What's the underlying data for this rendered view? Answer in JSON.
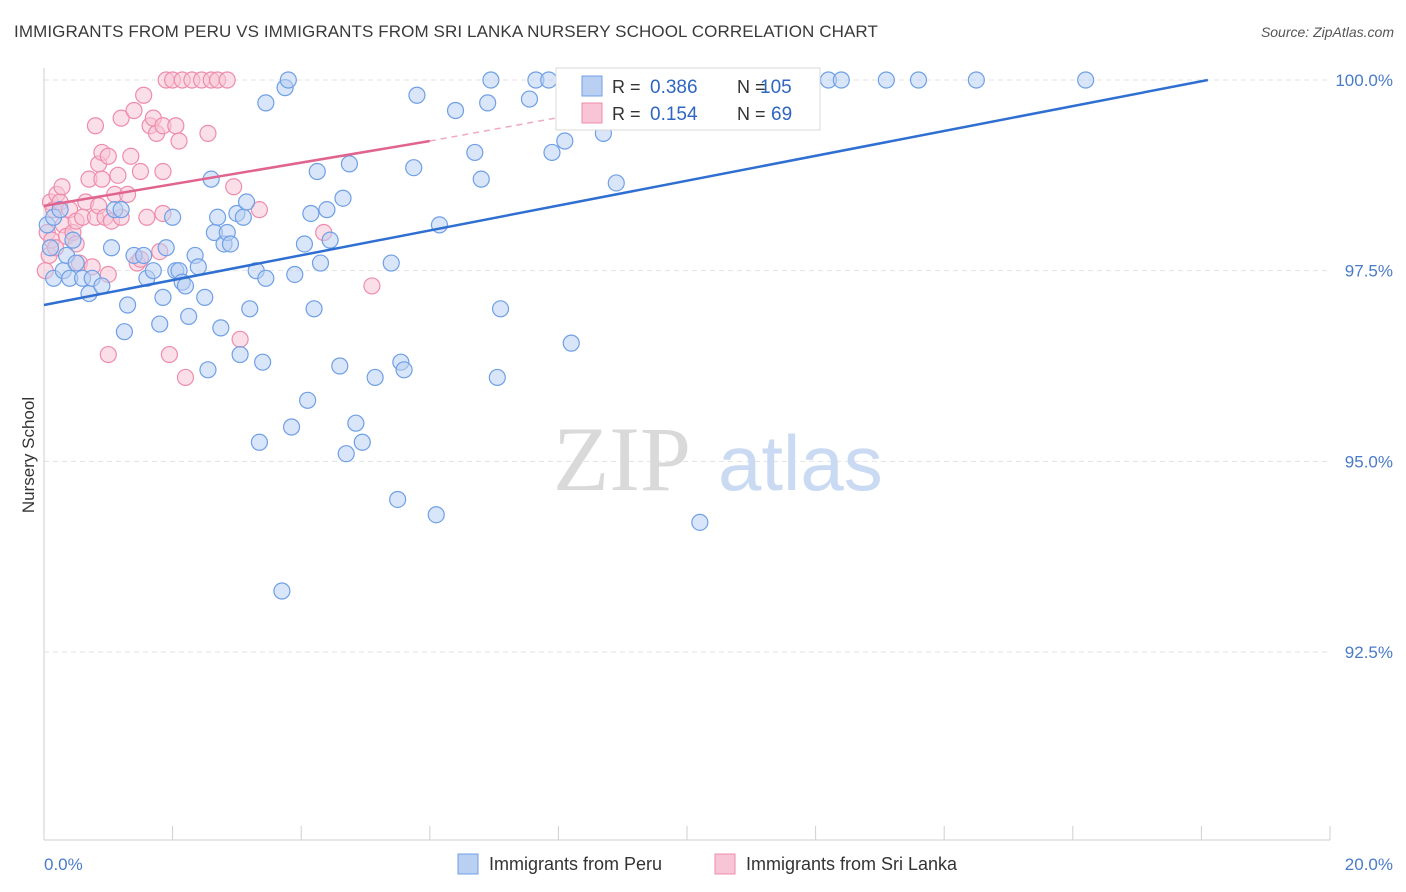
{
  "title": "IMMIGRANTS FROM PERU VS IMMIGRANTS FROM SRI LANKA NURSERY SCHOOL CORRELATION CHART",
  "source": "Source: ZipAtlas.com",
  "watermark": {
    "zip": "ZIP",
    "atlas": "atlas"
  },
  "chart_data": {
    "type": "scatter",
    "title": "IMMIGRANTS FROM PERU VS IMMIGRANTS FROM SRI LANKA NURSERY SCHOOL CORRELATION CHART",
    "xlabel": "",
    "ylabel": "Nursery School",
    "xlim": [
      0,
      20
    ],
    "ylim": [
      90.2,
      100.2
    ],
    "x_tick_labels": {
      "left": "0.0%",
      "right": "20.0%"
    },
    "y_ticks": [
      {
        "value": 100.0,
        "label": "100.0%"
      },
      {
        "value": 97.5,
        "label": "97.5%"
      },
      {
        "value": 95.0,
        "label": "95.0%"
      },
      {
        "value": 92.5,
        "label": "92.5%"
      }
    ],
    "grid": true,
    "legend_placement": "top-center",
    "series": [
      {
        "name": "Immigrants from Peru",
        "color": "#6f9fe6",
        "fill": "#b9d0f3",
        "stats": {
          "r_label": "R =",
          "r": "0.386",
          "n_label": "N =",
          "n": "105"
        },
        "trend": {
          "x": [
            0,
            18.1
          ],
          "y": [
            97.05,
            100.0
          ],
          "color": "#2f6fd1"
        },
        "points": [
          [
            0.05,
            98.1
          ],
          [
            0.1,
            97.8
          ],
          [
            0.15,
            97.4
          ],
          [
            0.15,
            98.2
          ],
          [
            0.25,
            98.3
          ],
          [
            0.3,
            97.5
          ],
          [
            0.35,
            97.7
          ],
          [
            0.4,
            97.4
          ],
          [
            0.45,
            97.9
          ],
          [
            0.5,
            97.6
          ],
          [
            0.6,
            97.4
          ],
          [
            0.7,
            97.2
          ],
          [
            0.75,
            97.4
          ],
          [
            0.9,
            97.3
          ],
          [
            1.05,
            97.8
          ],
          [
            1.1,
            98.3
          ],
          [
            1.2,
            98.3
          ],
          [
            1.25,
            96.7
          ],
          [
            1.3,
            97.05
          ],
          [
            1.4,
            97.7
          ],
          [
            1.55,
            97.7
          ],
          [
            1.6,
            97.4
          ],
          [
            1.7,
            97.5
          ],
          [
            1.8,
            96.8
          ],
          [
            1.85,
            97.15
          ],
          [
            1.9,
            97.8
          ],
          [
            2.0,
            98.2
          ],
          [
            2.05,
            97.5
          ],
          [
            2.1,
            97.5
          ],
          [
            2.15,
            97.35
          ],
          [
            2.2,
            97.3
          ],
          [
            2.25,
            96.9
          ],
          [
            2.35,
            97.7
          ],
          [
            2.4,
            97.55
          ],
          [
            2.5,
            97.15
          ],
          [
            2.55,
            96.2
          ],
          [
            2.6,
            98.7
          ],
          [
            2.65,
            98.0
          ],
          [
            2.7,
            98.2
          ],
          [
            2.75,
            96.75
          ],
          [
            2.8,
            97.85
          ],
          [
            2.85,
            98.0
          ],
          [
            2.9,
            97.85
          ],
          [
            3.0,
            98.25
          ],
          [
            3.05,
            96.4
          ],
          [
            3.1,
            98.2
          ],
          [
            3.15,
            98.4
          ],
          [
            3.2,
            97.0
          ],
          [
            3.3,
            97.5
          ],
          [
            3.35,
            95.25
          ],
          [
            3.4,
            96.3
          ],
          [
            3.45,
            97.4
          ],
          [
            3.45,
            99.7
          ],
          [
            3.7,
            93.3
          ],
          [
            3.75,
            99.9
          ],
          [
            3.8,
            100.0
          ],
          [
            3.85,
            95.45
          ],
          [
            3.9,
            97.45
          ],
          [
            4.05,
            97.85
          ],
          [
            4.1,
            95.8
          ],
          [
            4.15,
            98.25
          ],
          [
            4.2,
            97.0
          ],
          [
            4.25,
            98.8
          ],
          [
            4.3,
            97.6
          ],
          [
            4.4,
            98.3
          ],
          [
            4.45,
            97.9
          ],
          [
            4.6,
            96.25
          ],
          [
            4.65,
            98.45
          ],
          [
            4.7,
            95.1
          ],
          [
            4.75,
            98.9
          ],
          [
            4.85,
            95.5
          ],
          [
            4.95,
            95.25
          ],
          [
            5.15,
            96.1
          ],
          [
            5.4,
            97.6
          ],
          [
            5.5,
            94.5
          ],
          [
            5.55,
            96.3
          ],
          [
            5.6,
            96.2
          ],
          [
            5.75,
            98.85
          ],
          [
            5.8,
            99.8
          ],
          [
            6.1,
            94.3
          ],
          [
            6.15,
            98.1
          ],
          [
            6.4,
            99.6
          ],
          [
            6.7,
            99.05
          ],
          [
            6.8,
            98.7
          ],
          [
            6.9,
            99.7
          ],
          [
            6.95,
            100.0
          ],
          [
            7.05,
            96.1
          ],
          [
            7.1,
            97.0
          ],
          [
            7.55,
            99.75
          ],
          [
            7.65,
            100.0
          ],
          [
            7.85,
            100.0
          ],
          [
            7.9,
            99.05
          ],
          [
            8.1,
            99.2
          ],
          [
            8.2,
            96.55
          ],
          [
            8.4,
            100.0
          ],
          [
            8.7,
            99.3
          ],
          [
            8.9,
            98.65
          ],
          [
            9.6,
            100.0
          ],
          [
            10.2,
            94.2
          ],
          [
            11.4,
            100.0
          ],
          [
            12.2,
            100.0
          ],
          [
            12.4,
            100.0
          ],
          [
            13.1,
            100.0
          ],
          [
            13.6,
            100.0
          ],
          [
            14.5,
            100.0
          ],
          [
            16.2,
            100.0
          ]
        ]
      },
      {
        "name": "Immigrants from Sri Lanka",
        "color": "#ef8cab",
        "fill": "#f8c5d6",
        "stats": {
          "r_label": "R =",
          "r": "0.154",
          "n_label": "N =",
          "n": "69"
        },
        "trend": {
          "x": [
            0,
            6.0
          ],
          "y": [
            98.35,
            99.2
          ],
          "color": "#e0648e"
        },
        "trend_extension": {
          "x": [
            6.0,
            8.6
          ],
          "y": [
            99.2,
            99.6
          ]
        },
        "points": [
          [
            0.02,
            97.5
          ],
          [
            0.05,
            98.0
          ],
          [
            0.08,
            97.7
          ],
          [
            0.1,
            98.4
          ],
          [
            0.12,
            97.9
          ],
          [
            0.15,
            98.3
          ],
          [
            0.18,
            97.8
          ],
          [
            0.2,
            98.5
          ],
          [
            0.25,
            98.4
          ],
          [
            0.28,
            98.6
          ],
          [
            0.3,
            98.1
          ],
          [
            0.35,
            97.95
          ],
          [
            0.4,
            98.3
          ],
          [
            0.45,
            98.0
          ],
          [
            0.5,
            97.85
          ],
          [
            0.5,
            98.15
          ],
          [
            0.55,
            97.6
          ],
          [
            0.6,
            98.2
          ],
          [
            0.65,
            98.4
          ],
          [
            0.7,
            98.7
          ],
          [
            0.75,
            97.55
          ],
          [
            0.8,
            99.4
          ],
          [
            0.8,
            98.2
          ],
          [
            0.85,
            98.9
          ],
          [
            0.85,
            98.35
          ],
          [
            0.9,
            99.05
          ],
          [
            0.9,
            98.7
          ],
          [
            0.95,
            98.2
          ],
          [
            1.0,
            97.45
          ],
          [
            1.0,
            96.4
          ],
          [
            1.0,
            99.0
          ],
          [
            1.05,
            98.15
          ],
          [
            1.1,
            98.5
          ],
          [
            1.15,
            98.75
          ],
          [
            1.2,
            99.5
          ],
          [
            1.2,
            98.2
          ],
          [
            1.3,
            98.5
          ],
          [
            1.35,
            99.0
          ],
          [
            1.4,
            99.6
          ],
          [
            1.45,
            97.6
          ],
          [
            1.5,
            97.65
          ],
          [
            1.5,
            98.8
          ],
          [
            1.55,
            99.8
          ],
          [
            1.6,
            98.2
          ],
          [
            1.65,
            99.4
          ],
          [
            1.7,
            99.5
          ],
          [
            1.75,
            99.3
          ],
          [
            1.8,
            97.75
          ],
          [
            1.85,
            99.4
          ],
          [
            1.85,
            98.8
          ],
          [
            1.85,
            98.25
          ],
          [
            1.9,
            100.0
          ],
          [
            1.95,
            96.4
          ],
          [
            2.0,
            100.0
          ],
          [
            2.05,
            99.4
          ],
          [
            2.1,
            99.2
          ],
          [
            2.15,
            100.0
          ],
          [
            2.2,
            96.1
          ],
          [
            2.3,
            100.0
          ],
          [
            2.45,
            100.0
          ],
          [
            2.55,
            99.3
          ],
          [
            2.6,
            100.0
          ],
          [
            2.7,
            100.0
          ],
          [
            2.85,
            100.0
          ],
          [
            2.95,
            98.6
          ],
          [
            3.05,
            96.6
          ],
          [
            3.35,
            98.3
          ],
          [
            4.35,
            98.0
          ],
          [
            5.1,
            97.3
          ]
        ]
      }
    ]
  },
  "legend": {
    "peru": "Immigrants from Peru",
    "srilanka": "Immigrants from Sri Lanka"
  }
}
